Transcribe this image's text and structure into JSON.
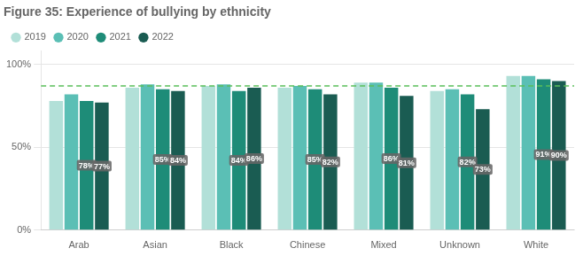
{
  "chart_data": {
    "type": "bar",
    "title": "Figure 35: Experience of bullying by ethnicity",
    "categories": [
      "Arab",
      "Asian",
      "Black",
      "Chinese",
      "Mixed",
      "Unknown",
      "White"
    ],
    "series": [
      {
        "name": "2019",
        "color": "#b2e0d8",
        "values": [
          78,
          86,
          87,
          86,
          89,
          84,
          93
        ]
      },
      {
        "name": "2020",
        "color": "#5bbfb5",
        "values": [
          82,
          88,
          88,
          87,
          89,
          85,
          93
        ]
      },
      {
        "name": "2021",
        "color": "#1e8c78",
        "values": [
          78,
          85,
          84,
          85,
          86,
          82,
          91
        ],
        "data_labels": true,
        "value_labels": [
          "78%",
          "85%",
          "84%",
          "85%",
          "86%",
          "82%",
          "91%"
        ]
      },
      {
        "name": "2022",
        "color": "#1a5c52",
        "values": [
          77,
          84,
          86,
          82,
          81,
          73,
          90
        ],
        "data_labels": true,
        "value_labels": [
          "77%",
          "84%",
          "86%",
          "82%",
          "81%",
          "73%",
          "90%"
        ]
      }
    ],
    "ref_line": {
      "value": 87,
      "color": "#5abf5a",
      "line_style": "dashed"
    },
    "ylim": [
      0,
      108
    ],
    "yticks": [
      {
        "value": 0,
        "label": "0%"
      },
      {
        "value": 50,
        "label": "50%"
      },
      {
        "value": 100,
        "label": "100%"
      }
    ],
    "grid": true,
    "legend": "upper left"
  }
}
